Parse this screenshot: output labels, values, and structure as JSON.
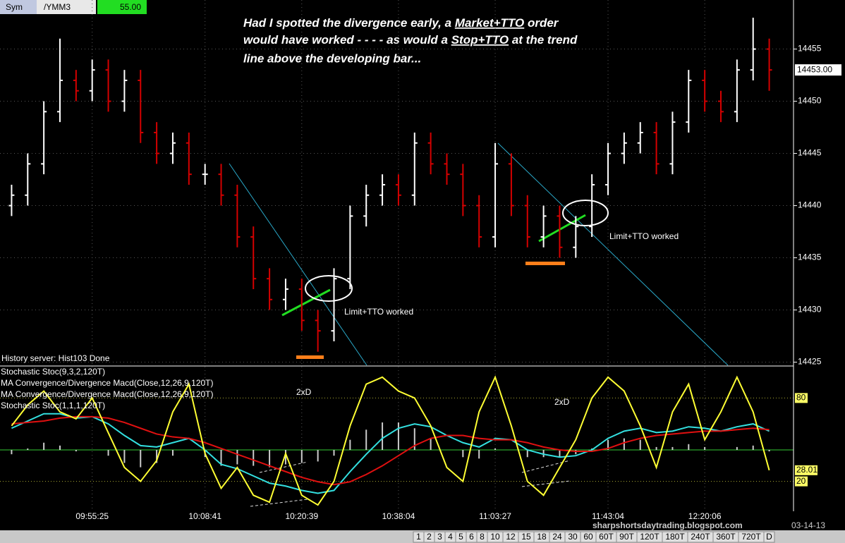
{
  "header": {
    "sym": "Sym",
    "symbol": "/YMM3",
    "value": "55.00"
  },
  "annotation": {
    "line1a": "Had I spotted the divergence early, a ",
    "line1b": "Market+TTO",
    "line1c": " order",
    "line2a": "would have worked - - - - as would a ",
    "line2b": "Stop+TTO",
    "line2c": " at the trend",
    "line3": "line above the developing bar..."
  },
  "notes": {
    "left": "Limit+TTO worked",
    "right": "Limit+TTO worked",
    "div_left": "2xD",
    "div_right": "2xD"
  },
  "status": "History server: Hist103 Done",
  "legend": [
    "Stochastic Stoc(9,3,2,120T)",
    "MA Convergence/Divergence Macd(Close,12,26,9,120T)",
    "MA Convergence/Divergence Macd(Close,12,26,9,120T)",
    "Stochastic Stoc(1,1,1,120T)"
  ],
  "watermark": "sharpshortsdaytrading.blogspot.com",
  "date": "03-14-13",
  "tabs": [
    "1",
    "2",
    "3",
    "4",
    "5",
    "6",
    "8",
    "10",
    "12",
    "15",
    "18",
    "24",
    "30",
    "60",
    "60T",
    "90T",
    "120T",
    "180T",
    "240T",
    "360T",
    "720T",
    "D"
  ],
  "chart_data": {
    "type": "ohlc",
    "categories": [
      null,
      null,
      null,
      null,
      null,
      "09:55:25",
      null,
      null,
      null,
      null,
      null,
      null,
      "10:08:41",
      null,
      null,
      null,
      null,
      null,
      "10:20:39",
      null,
      null,
      null,
      null,
      null,
      "10:38:04",
      null,
      null,
      null,
      null,
      null,
      "11:03:27",
      null,
      null,
      null,
      null,
      null,
      null,
      "11:43:04",
      null,
      null,
      null,
      null,
      null,
      "12:20:06",
      null,
      null,
      null,
      null
    ],
    "open": [
      14440,
      14441,
      14444,
      14449,
      14452,
      14451,
      14453,
      14450,
      14452,
      14447,
      14445,
      14446,
      14443,
      14443,
      14441,
      14437,
      14433,
      14431,
      14432,
      14429,
      14428,
      14433,
      14439,
      14441,
      14442,
      14441,
      14446,
      14444,
      14443,
      14440,
      14437,
      14444,
      14440,
      14437,
      14439,
      14436,
      14438,
      14442,
      14445,
      14446,
      14447,
      14444,
      14448,
      14452,
      14450,
      14449,
      14453,
      14455
    ],
    "high": [
      14442,
      14445,
      14450,
      14456,
      14453,
      14454,
      14454,
      14453,
      14453,
      14448,
      14447,
      14447,
      14444,
      14444,
      14442,
      14438,
      14434,
      14433,
      14433,
      14430,
      14434,
      14440,
      14442,
      14443,
      14443,
      14447,
      14447,
      14445,
      14444,
      14441,
      14446,
      14445,
      14441,
      14440,
      14440,
      14439,
      14443,
      14446,
      14447,
      14448,
      14448,
      14449,
      14453,
      14453,
      14451,
      14454,
      14458,
      14456
    ],
    "low": [
      14439,
      14440,
      14443,
      14448,
      14450,
      14450,
      14449,
      14449,
      14446,
      14444,
      14444,
      14442,
      14442,
      14440,
      14436,
      14432,
      14430,
      14430,
      14428,
      14426,
      14427,
      14432,
      14438,
      14440,
      14440,
      14440,
      14443,
      14442,
      14439,
      14436,
      14436,
      14439,
      14436,
      14436,
      14435,
      14435,
      14437,
      14441,
      14444,
      14445,
      14443,
      14443,
      14447,
      14449,
      14448,
      14448,
      14452,
      14451
    ],
    "close": [
      14441,
      14444,
      14449,
      14452,
      14451,
      14453,
      14450,
      14452,
      14447,
      14445,
      14446,
      14443,
      14443,
      14441,
      14437,
      14433,
      14431,
      14432,
      14429,
      14428,
      14433,
      14439,
      14441,
      14442,
      14441,
      14446,
      14444,
      14443,
      14440,
      14437,
      14444,
      14440,
      14437,
      14439,
      14436,
      14438,
      14442,
      14445,
      14446,
      14447,
      14444,
      14448,
      14452,
      14450,
      14449,
      14453,
      14455,
      14453
    ],
    "last_label": "14453.00",
    "up_color": "#ffffff",
    "down_color": "#d40000",
    "ylim": [
      14424.7,
      14459.7
    ],
    "yticks": [
      14425,
      14430,
      14435,
      14440,
      14445,
      14450,
      14455
    ],
    "stoch": {
      "color": "#ffff33",
      "ylim": [
        0,
        100
      ],
      "yticks": [
        20,
        80
      ],
      "values": [
        60,
        75,
        85,
        70,
        65,
        80,
        55,
        30,
        20,
        35,
        70,
        90,
        40,
        15,
        30,
        10,
        5,
        40,
        10,
        3,
        20,
        60,
        90,
        95,
        85,
        80,
        60,
        30,
        20,
        70,
        95,
        60,
        20,
        10,
        30,
        50,
        80,
        95,
        85,
        60,
        30,
        70,
        90,
        50,
        70,
        95,
        70,
        28.01
      ]
    },
    "macd": {
      "ylim": [
        -4,
        4
      ],
      "zero_color": "#33cc33",
      "series": [
        {
          "color": "#33e0e0",
          "values": [
            1.5,
            2,
            2.5,
            2.5,
            2.2,
            2.3,
            1.8,
            1,
            0.3,
            0.2,
            0.5,
            0.8,
            0,
            -1,
            -1.3,
            -1.8,
            -2.3,
            -2.5,
            -2.8,
            -3,
            -2.8,
            -1.5,
            -0.3,
            0.8,
            1.5,
            1.8,
            1.6,
            1,
            0.5,
            0.2,
            0.8,
            0.7,
            0,
            -0.3,
            -0.5,
            -0.4,
            0,
            0.8,
            1.3,
            1.5,
            1.2,
            1.3,
            1.6,
            1.5,
            1.3,
            1.6,
            1.8,
            1.3
          ]
        },
        {
          "color": "#e01010",
          "values": [
            1.8,
            1.9,
            2,
            2.2,
            2.3,
            2.3,
            2.2,
            1.9,
            1.5,
            1.1,
            0.9,
            0.8,
            0.5,
            0.1,
            -0.3,
            -0.7,
            -1.1,
            -1.5,
            -1.9,
            -2.2,
            -2.4,
            -2.2,
            -1.7,
            -1.1,
            -0.4,
            0.3,
            0.8,
            1,
            1,
            0.8,
            0.7,
            0.7,
            0.5,
            0.2,
            0,
            -0.1,
            -0.1,
            0.1,
            0.5,
            0.8,
            1,
            1.1,
            1.2,
            1.3,
            1.3,
            1.4,
            1.5,
            1.4
          ]
        }
      ],
      "histogram": {
        "color": "#cccccc",
        "values": [
          -0.3,
          0.1,
          0.5,
          0.3,
          -0.1,
          0,
          -0.4,
          -0.9,
          -1.2,
          -0.9,
          -0.4,
          0,
          -0.5,
          -1.1,
          -1,
          -1.1,
          -1.2,
          -1,
          -0.9,
          -0.8,
          -0.4,
          0.7,
          1.4,
          1.9,
          1.9,
          1.5,
          0.8,
          0,
          -0.5,
          -0.6,
          0.1,
          0,
          -0.5,
          -0.5,
          -0.5,
          -0.3,
          0.1,
          0.7,
          0.8,
          0.7,
          0.2,
          0.2,
          0.4,
          0.2,
          0,
          0.2,
          0.3,
          -0.1
        ]
      }
    }
  }
}
